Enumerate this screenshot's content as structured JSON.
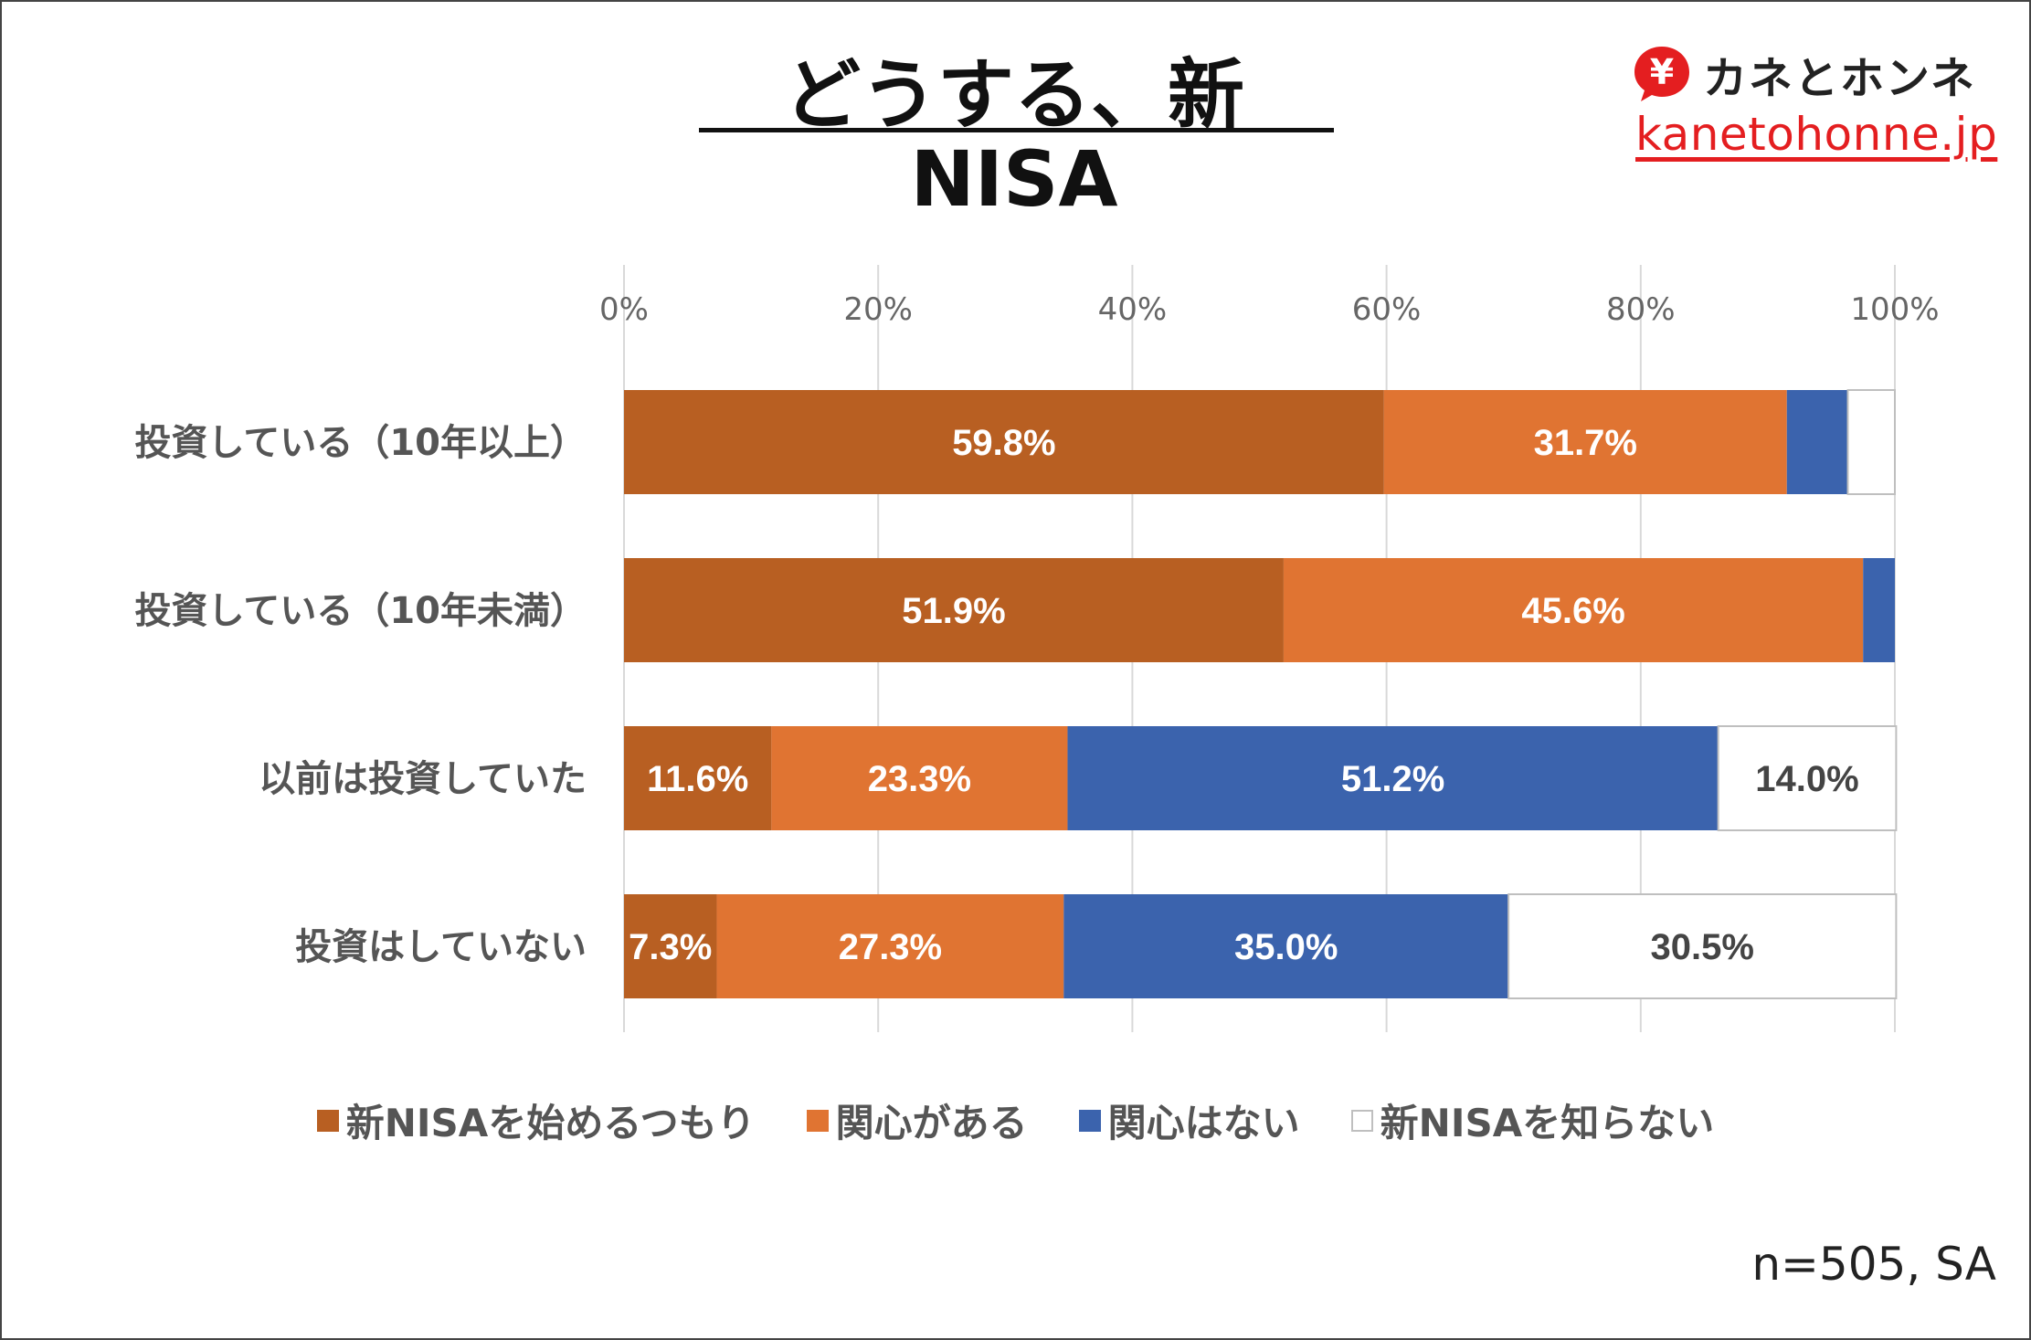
{
  "header": {
    "title": "どうする、新NISA",
    "brand_name": "カネとホンネ",
    "brand_url": "kanetohonne.jp",
    "brand_symbol": "¥",
    "brand_color": "#e41e20"
  },
  "chart_data": {
    "type": "bar",
    "orientation": "horizontal",
    "stacked": true,
    "normalized_percent": true,
    "title": "どうする、新NISA",
    "categories": [
      "投資している（10年以上）",
      "投資している（10年未満）",
      "以前は投資していた",
      "投資はしていない"
    ],
    "series": [
      {
        "name": "新NISAを始めるつもり",
        "color": "#b85f22",
        "label_color": "#ffffff",
        "values": [
          59.8,
          51.9,
          11.6,
          7.3
        ]
      },
      {
        "name": "関心がある",
        "color": "#e07432",
        "label_color": "#ffffff",
        "values": [
          31.7,
          45.6,
          23.3,
          27.3
        ]
      },
      {
        "name": "関心はない",
        "color": "#3b63ad",
        "label_color": "#ffffff",
        "values": [
          4.8,
          2.5,
          51.2,
          35.0
        ]
      },
      {
        "name": "新NISAを知らない",
        "color": "#ffffff",
        "label_color": "#444444",
        "values": [
          3.7,
          0.0,
          14.0,
          30.5
        ]
      }
    ],
    "data_labels": [
      [
        "59.8%",
        "31.7%",
        "",
        ""
      ],
      [
        "51.9%",
        "45.6%",
        "",
        ""
      ],
      [
        "11.6%",
        "23.3%",
        "51.2%",
        "14.0%"
      ],
      [
        "7.3%",
        "27.3%",
        "35.0%",
        "30.5%"
      ]
    ],
    "x_ticks": [
      "0%",
      "20%",
      "40%",
      "60%",
      "80%",
      "100%"
    ],
    "xlim": [
      0,
      100
    ],
    "grid": true,
    "legend_position": "bottom",
    "note": "n=505, SA"
  }
}
